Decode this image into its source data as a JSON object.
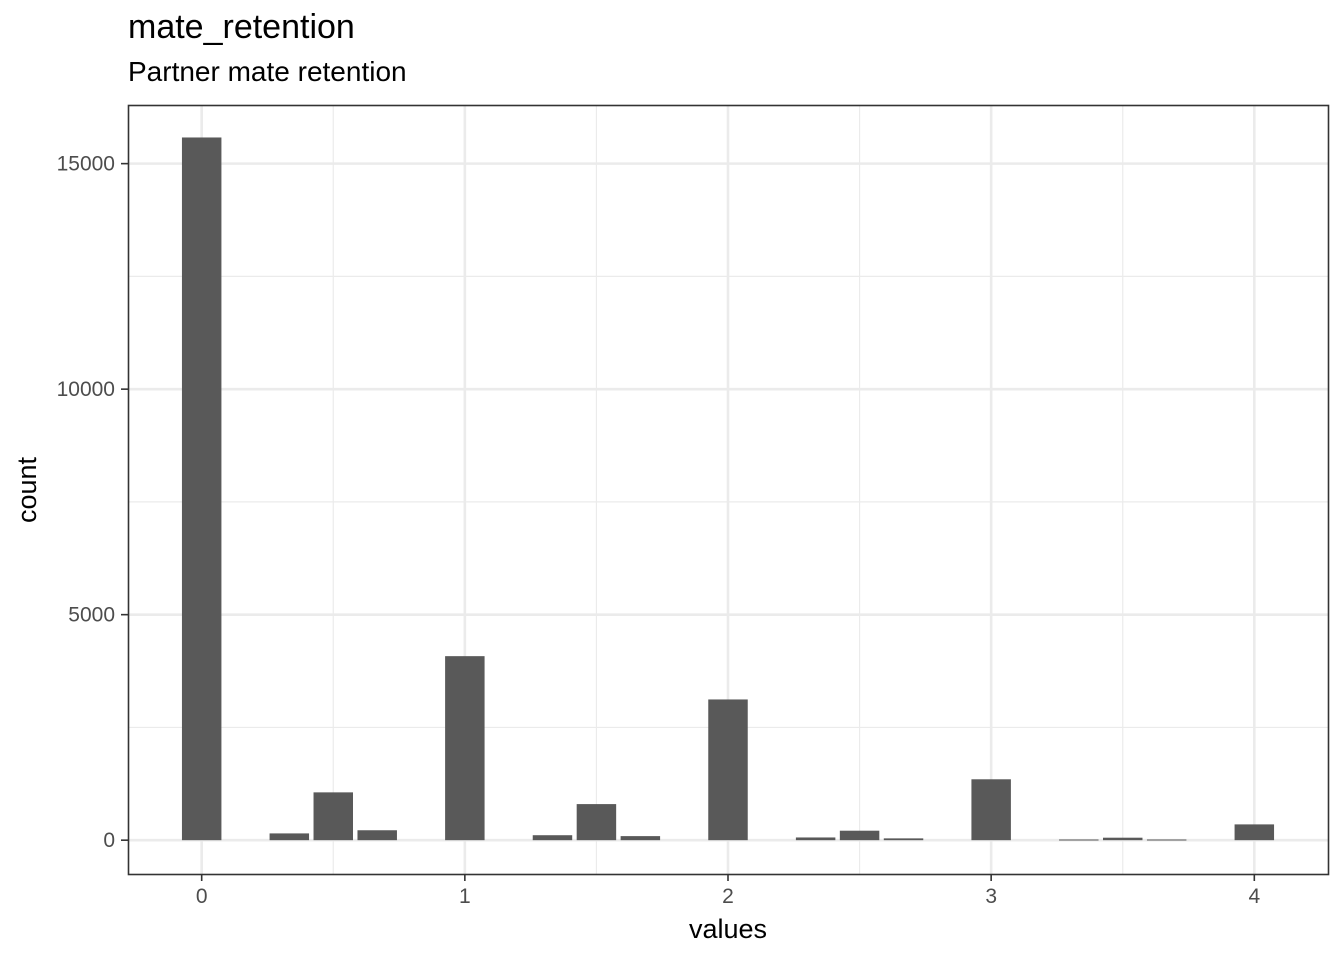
{
  "chart_data": {
    "type": "bar",
    "title": "mate_retention",
    "subtitle": "Partner mate retention",
    "xlabel": "values",
    "ylabel": "count",
    "x_ticks": [
      "0",
      "1",
      "2",
      "3",
      "4"
    ],
    "y_ticks": [
      "0",
      "5000",
      "10000",
      "15000"
    ],
    "xlim": [
      -0.28,
      4.28
    ],
    "ylim": [
      -750,
      16300
    ],
    "grid": true,
    "bar_width": 0.15,
    "bar_color": "#595959",
    "x": [
      0,
      0.333,
      0.5,
      0.667,
      1,
      1.333,
      1.5,
      1.667,
      2,
      2.333,
      2.5,
      2.667,
      3,
      3.333,
      3.5,
      3.667,
      4
    ],
    "values": [
      15580,
      150,
      1060,
      220,
      4080,
      110,
      800,
      90,
      3120,
      60,
      210,
      40,
      1350,
      15,
      55,
      15,
      350
    ]
  }
}
